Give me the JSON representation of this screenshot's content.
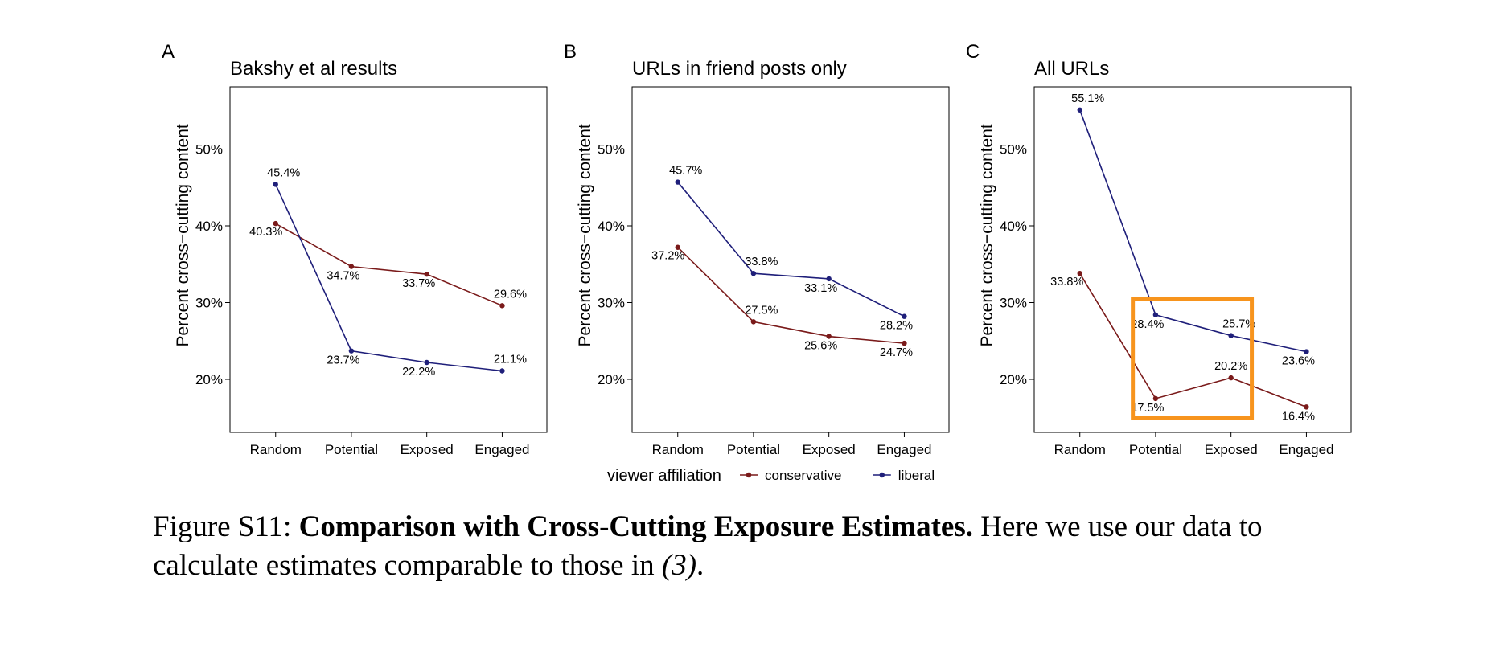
{
  "legend": {
    "title": "viewer affiliation",
    "items": [
      {
        "label": "conservative",
        "color": "#7a1a1a"
      },
      {
        "label": "liberal",
        "color": "#1f1f7a"
      }
    ]
  },
  "chart_data": [
    {
      "type": "line",
      "panel": "A",
      "title": "Bakshy et al results",
      "xlabel": "",
      "ylabel": "Percent cross−cutting content",
      "categories": [
        "Random",
        "Potential",
        "Exposed",
        "Engaged"
      ],
      "ylim": [
        13,
        58
      ],
      "yticks": [
        20,
        30,
        40,
        50
      ],
      "ytick_labels": [
        "20%",
        "30%",
        "40%",
        "50%"
      ],
      "series": [
        {
          "name": "conservative",
          "color": "#7a1a1a",
          "values": [
            40.3,
            34.7,
            33.7,
            29.6
          ],
          "labels": [
            "40.3%",
            "34.7%",
            "33.7%",
            "29.6%"
          ]
        },
        {
          "name": "liberal",
          "color": "#1f1f7a",
          "values": [
            45.4,
            23.7,
            22.2,
            21.1
          ],
          "labels": [
            "45.4%",
            "23.7%",
            "22.2%",
            "21.1%"
          ]
        }
      ]
    },
    {
      "type": "line",
      "panel": "B",
      "title": "URLs in friend posts only",
      "xlabel": "",
      "ylabel": "Percent cross−cutting content",
      "categories": [
        "Random",
        "Potential",
        "Exposed",
        "Engaged"
      ],
      "ylim": [
        13,
        58
      ],
      "yticks": [
        20,
        30,
        40,
        50
      ],
      "ytick_labels": [
        "20%",
        "30%",
        "40%",
        "50%"
      ],
      "series": [
        {
          "name": "conservative",
          "color": "#7a1a1a",
          "values": [
            37.2,
            27.5,
            25.6,
            24.7
          ],
          "labels": [
            "37.2%",
            "27.5%",
            "25.6%",
            "24.7%"
          ]
        },
        {
          "name": "liberal",
          "color": "#1f1f7a",
          "values": [
            45.7,
            33.8,
            33.1,
            28.2
          ],
          "labels": [
            "45.7%",
            "33.8%",
            "33.1%",
            "28.2%"
          ]
        }
      ]
    },
    {
      "type": "line",
      "panel": "C",
      "title": "All URLs",
      "xlabel": "",
      "ylabel": "Percent cross−cutting content",
      "categories": [
        "Random",
        "Potential",
        "Exposed",
        "Engaged"
      ],
      "ylim": [
        13,
        58
      ],
      "yticks": [
        20,
        30,
        40,
        50
      ],
      "ytick_labels": [
        "20%",
        "30%",
        "40%",
        "50%"
      ],
      "highlight": {
        "color": "#f7941d",
        "from_category": "Potential",
        "to_category": "Exposed",
        "y_range": [
          15,
          30.5
        ]
      },
      "series": [
        {
          "name": "conservative",
          "color": "#7a1a1a",
          "values": [
            33.8,
            17.5,
            20.2,
            16.4
          ],
          "labels": [
            "33.8%",
            "17.5%",
            "20.2%",
            "16.4%"
          ]
        },
        {
          "name": "liberal",
          "color": "#1f1f7a",
          "values": [
            55.1,
            28.4,
            25.7,
            23.6
          ],
          "labels": [
            "55.1%",
            "28.4%",
            "25.7%",
            "23.6%"
          ]
        }
      ]
    }
  ],
  "caption": {
    "prefix": "Figure S11: ",
    "bold": "Comparison with Cross-Cutting Exposure Estimates.",
    "text": " Here we use our data to calculate estimates comparable to those in ",
    "citation": "(3)",
    "suffix": "."
  }
}
